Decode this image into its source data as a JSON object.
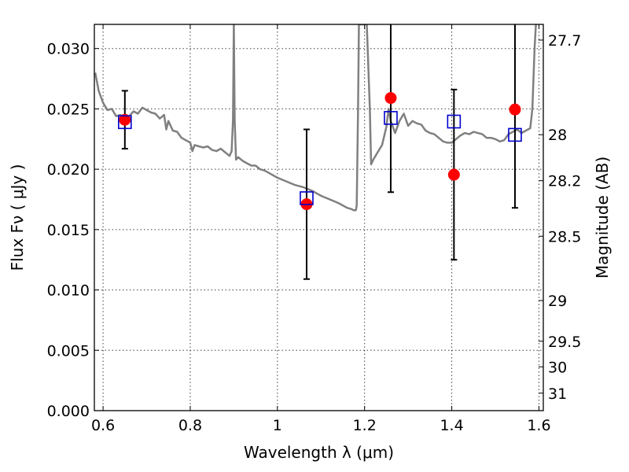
{
  "chart_data": {
    "type": "scatter",
    "xlabel": "Wavelength  λ (μm)",
    "ylabel": "Flux  Fν  ( μJy )",
    "y2label": "Magnitude (AB)",
    "xlim": [
      0.58,
      1.61
    ],
    "ylim": [
      0.0,
      0.032
    ],
    "grid": true,
    "x_ticks": [
      0.6,
      0.8,
      1.0,
      1.2,
      1.4,
      1.6
    ],
    "x_tick_labels": [
      "0.6",
      "0.8",
      "1",
      "1.2",
      "1.4",
      "1.6"
    ],
    "y_ticks": [
      0.0,
      0.005,
      0.01,
      0.015,
      0.02,
      0.025,
      0.03
    ],
    "y_tick_labels": [
      "0.000",
      "0.005",
      "0.010",
      "0.015",
      "0.020",
      "0.025",
      "0.030"
    ],
    "y2_ticks": [
      {
        "label": "27.7",
        "flux": 0.0307
      },
      {
        "label": "28",
        "flux": 0.02286
      },
      {
        "label": "28.2",
        "flux": 0.01905
      },
      {
        "label": "28.5",
        "flux": 0.01445
      },
      {
        "label": "29",
        "flux": 0.00912
      },
      {
        "label": "29.5",
        "flux": 0.00575
      },
      {
        "label": "30",
        "flux": 0.00363
      },
      {
        "label": "31",
        "flux": 0.00145
      }
    ],
    "colors": {
      "model": "#808080",
      "observed": "#ff0000",
      "model_points": "#0000cc",
      "errorbars": "#000000"
    },
    "series": [
      {
        "kind": "line",
        "points": [
          [
            0.582,
            0.028
          ],
          [
            0.59,
            0.0265
          ],
          [
            0.6,
            0.0255
          ],
          [
            0.61,
            0.0249
          ],
          [
            0.62,
            0.025
          ],
          [
            0.63,
            0.0244
          ],
          [
            0.64,
            0.0245
          ],
          [
            0.65,
            0.0242
          ],
          [
            0.66,
            0.0244
          ],
          [
            0.67,
            0.0248
          ],
          [
            0.68,
            0.0246
          ],
          [
            0.69,
            0.0251
          ],
          [
            0.7,
            0.0249
          ],
          [
            0.71,
            0.0247
          ],
          [
            0.72,
            0.0246
          ],
          [
            0.73,
            0.0242
          ],
          [
            0.74,
            0.0245
          ],
          [
            0.745,
            0.0233
          ],
          [
            0.75,
            0.024
          ],
          [
            0.76,
            0.0232
          ],
          [
            0.77,
            0.0231
          ],
          [
            0.78,
            0.0226
          ],
          [
            0.79,
            0.0224
          ],
          [
            0.8,
            0.0222
          ],
          [
            0.805,
            0.0215
          ],
          [
            0.81,
            0.022
          ],
          [
            0.82,
            0.0219
          ],
          [
            0.83,
            0.0218
          ],
          [
            0.84,
            0.0219
          ],
          [
            0.85,
            0.0216
          ],
          [
            0.86,
            0.0215
          ],
          [
            0.87,
            0.0217
          ],
          [
            0.88,
            0.0214
          ],
          [
            0.89,
            0.0211
          ],
          [
            0.895,
            0.0215
          ],
          [
            0.898,
            0.024
          ],
          [
            0.9,
            0.032
          ],
          [
            0.902,
            0.024
          ],
          [
            0.905,
            0.0208
          ],
          [
            0.91,
            0.021
          ],
          [
            0.92,
            0.0207
          ],
          [
            0.93,
            0.0205
          ],
          [
            0.94,
            0.0203
          ],
          [
            0.95,
            0.0203
          ],
          [
            0.96,
            0.02
          ],
          [
            0.97,
            0.0199
          ],
          [
            0.98,
            0.0197
          ],
          [
            1.0,
            0.0193
          ],
          [
            1.02,
            0.019
          ],
          [
            1.04,
            0.0187
          ],
          [
            1.06,
            0.0185
          ],
          [
            1.08,
            0.0182
          ],
          [
            1.1,
            0.0178
          ],
          [
            1.12,
            0.0175
          ],
          [
            1.14,
            0.0172
          ],
          [
            1.16,
            0.0168
          ],
          [
            1.17,
            0.0167
          ],
          [
            1.175,
            0.0166
          ],
          [
            1.18,
            0.0166
          ],
          [
            1.182,
            0.017
          ],
          [
            1.185,
            0.025
          ],
          [
            1.187,
            0.032
          ],
          [
            1.205,
            0.032
          ],
          [
            1.212,
            0.025
          ],
          [
            1.215,
            0.0204
          ],
          [
            1.22,
            0.0208
          ],
          [
            1.23,
            0.0214
          ],
          [
            1.24,
            0.022
          ],
          [
            1.25,
            0.0235
          ],
          [
            1.255,
            0.025
          ],
          [
            1.26,
            0.024
          ],
          [
            1.27,
            0.023
          ],
          [
            1.28,
            0.024
          ],
          [
            1.29,
            0.0246
          ],
          [
            1.3,
            0.0236
          ],
          [
            1.31,
            0.024
          ],
          [
            1.32,
            0.0238
          ],
          [
            1.33,
            0.0237
          ],
          [
            1.34,
            0.0232
          ],
          [
            1.35,
            0.023
          ],
          [
            1.36,
            0.0229
          ],
          [
            1.37,
            0.0226
          ],
          [
            1.38,
            0.0223
          ],
          [
            1.39,
            0.0222
          ],
          [
            1.4,
            0.0222
          ],
          [
            1.41,
            0.0225
          ],
          [
            1.42,
            0.0228
          ],
          [
            1.43,
            0.023
          ],
          [
            1.44,
            0.0229
          ],
          [
            1.45,
            0.0231
          ],
          [
            1.46,
            0.023
          ],
          [
            1.47,
            0.0229
          ],
          [
            1.48,
            0.0226
          ],
          [
            1.49,
            0.0226
          ],
          [
            1.5,
            0.0225
          ],
          [
            1.51,
            0.0223
          ],
          [
            1.52,
            0.0224
          ],
          [
            1.53,
            0.0229
          ],
          [
            1.54,
            0.0231
          ],
          [
            1.55,
            0.0233
          ],
          [
            1.56,
            0.023
          ],
          [
            1.57,
            0.0232
          ],
          [
            1.58,
            0.0234
          ],
          [
            1.585,
            0.025
          ],
          [
            1.59,
            0.03
          ],
          [
            1.593,
            0.032
          ]
        ]
      },
      {
        "kind": "points_open_squares",
        "points": [
          [
            0.65,
            0.0239
          ],
          [
            1.067,
            0.0176
          ],
          [
            1.26,
            0.02425
          ],
          [
            1.405,
            0.02395
          ],
          [
            1.545,
            0.02285
          ]
        ]
      },
      {
        "kind": "points_filled_circles_with_errorbars",
        "points": [
          {
            "x": 0.65,
            "y": 0.0241,
            "err": 0.0024
          },
          {
            "x": 1.067,
            "y": 0.0171,
            "err": 0.0062
          },
          {
            "x": 1.26,
            "y": 0.0259,
            "err": 0.0078
          },
          {
            "x": 1.405,
            "y": 0.01955,
            "err": 0.00705
          },
          {
            "x": 1.545,
            "y": 0.02495,
            "err": 0.00815
          }
        ]
      }
    ]
  }
}
